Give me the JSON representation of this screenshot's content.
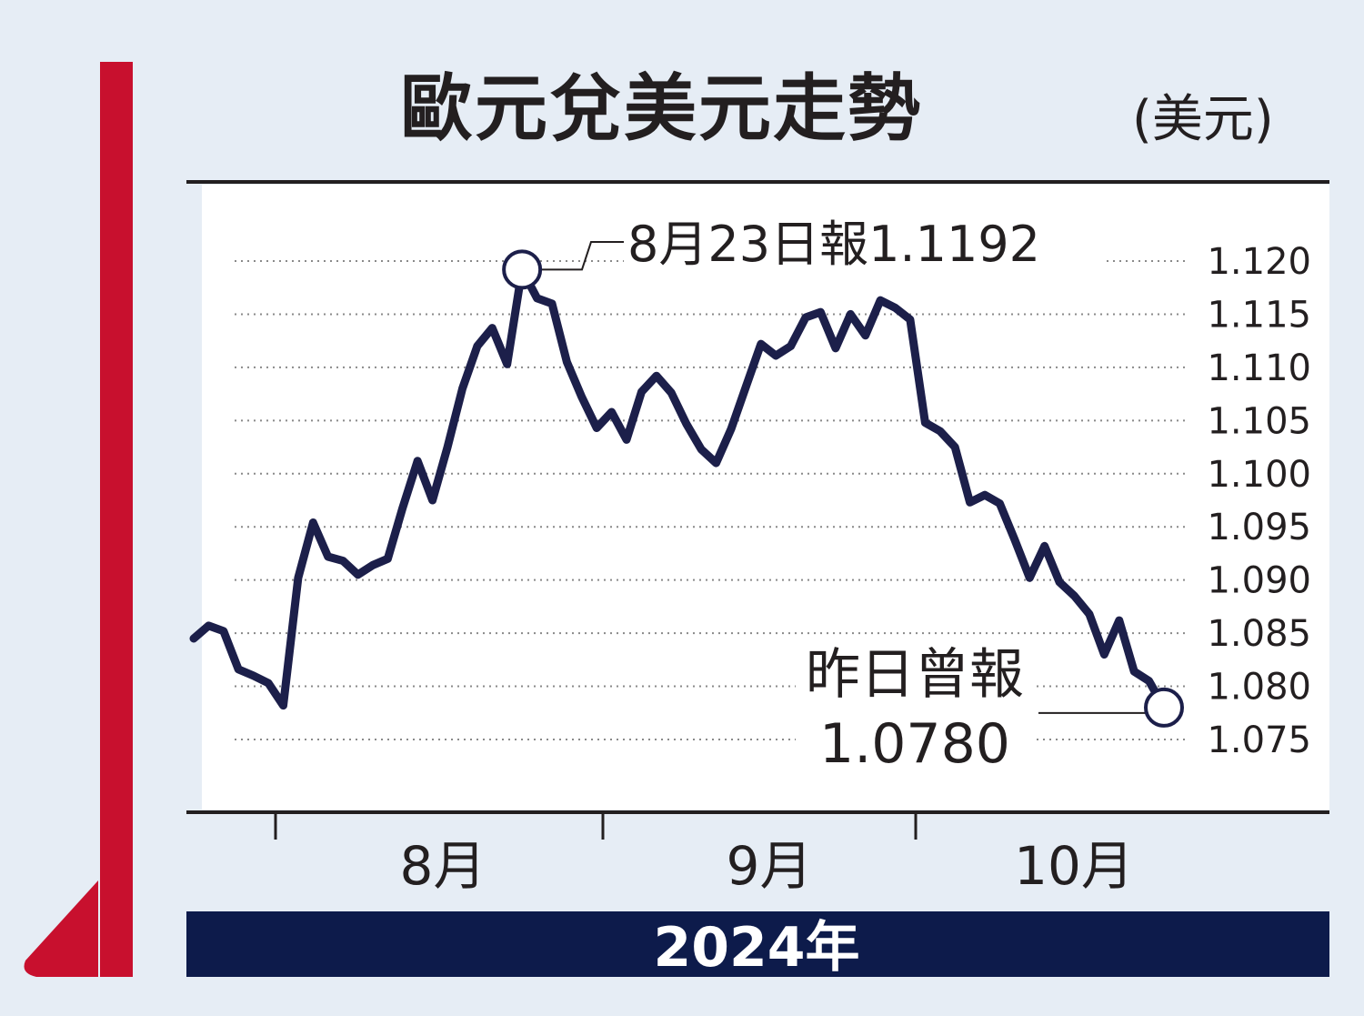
{
  "title": "歐元兌美元走勢",
  "unit": "(美元)",
  "year_label": "2024年",
  "colors": {
    "accent_red": "#c8102e",
    "line": "#1c1f4a",
    "year_bar": "#0d1b4b",
    "background": "#e6edf5",
    "plot_bg": "#ffffff"
  },
  "chart_data": {
    "type": "line",
    "title": "歐元兌美元走勢",
    "ylabel": "(美元)",
    "xlabel": "2024年",
    "ylim": [
      1.0745,
      1.1225
    ],
    "yticks": [
      "1.120",
      "1.115",
      "1.110",
      "1.105",
      "1.100",
      "1.095",
      "1.090",
      "1.085",
      "1.080",
      "1.075"
    ],
    "month_labels": [
      "8月",
      "9月",
      "10月"
    ],
    "grid": true,
    "series": [
      {
        "values": [
          1.0845,
          1.0857,
          1.0852,
          1.0816,
          1.081,
          1.0803,
          1.0782,
          1.0902,
          1.0954,
          1.0922,
          1.0918,
          1.0905,
          1.0914,
          1.092,
          1.0968,
          1.1012,
          1.0975,
          1.1025,
          1.108,
          1.112,
          1.1137,
          1.1103,
          1.1192,
          1.1165,
          1.116,
          1.1105,
          1.1072,
          1.1043,
          1.1058,
          1.1032,
          1.1077,
          1.1092,
          1.1076,
          1.1047,
          1.1023,
          1.101,
          1.1042,
          1.1082,
          1.1122,
          1.1111,
          1.112,
          1.1147,
          1.1152,
          1.1118,
          1.115,
          1.113,
          1.1163,
          1.1156,
          1.1145,
          1.1048,
          1.104,
          1.1025,
          1.0973,
          1.098,
          1.0972,
          1.0938,
          1.0902,
          1.0932,
          1.0898,
          1.0885,
          1.0868,
          1.083,
          1.0862,
          1.0814,
          1.0805,
          1.078
        ]
      }
    ],
    "annotations": [
      {
        "label": "8月23日報1.1192",
        "index": 22
      },
      {
        "label": "昨日曾報",
        "value_label": "1.0780",
        "index": 65
      }
    ]
  }
}
